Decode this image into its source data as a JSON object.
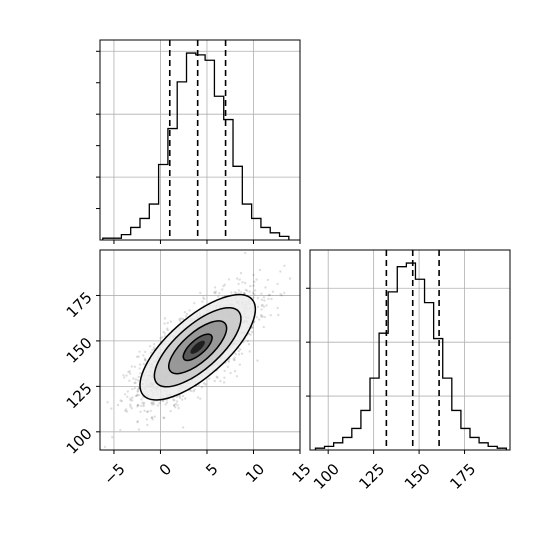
{
  "chart_data": [
    {
      "id": "hist-x",
      "type": "histogram",
      "title": "",
      "xlabel": "",
      "ylabel": "",
      "grid": true,
      "xlim": [
        -6.5,
        15
      ],
      "quantiles": [
        1.0,
        4.0,
        7.0
      ],
      "bins_x": [
        -6.2,
        -5.2,
        -4.2,
        -3.2,
        -2.2,
        -1.2,
        -0.2,
        0.8,
        1.8,
        2.8,
        3.8,
        4.8,
        5.8,
        6.8,
        7.8,
        8.8,
        9.8,
        10.8,
        11.8,
        12.8,
        13.8
      ],
      "counts": [
        1,
        1,
        3,
        7,
        12,
        20,
        42,
        62,
        88,
        104,
        103,
        100,
        80,
        67,
        41,
        20,
        12,
        7,
        4,
        2
      ]
    },
    {
      "id": "corner-2d",
      "type": "heatmap",
      "title": "",
      "xlabel": "",
      "ylabel": "",
      "grid": true,
      "xlim": [
        -6.5,
        15
      ],
      "ylim": [
        90,
        200
      ],
      "xticks": [
        "−5",
        "0",
        "5",
        "10",
        "15"
      ],
      "xtick_values": [
        -5,
        0,
        5,
        10,
        15
      ],
      "yticks": [
        "100",
        "125",
        "150",
        "175"
      ],
      "ytick_values": [
        100,
        125,
        150,
        175
      ],
      "center": [
        4,
        146.5
      ],
      "sigma": [
        3.1,
        14.5
      ],
      "correlation": 0.72,
      "contour_levels_sigma": [
        0.5,
        1.0,
        1.5,
        2.0
      ]
    },
    {
      "id": "hist-y",
      "type": "histogram",
      "title": "",
      "xlabel": "",
      "ylabel": "",
      "grid": true,
      "xlim": [
        90,
        200
      ],
      "xticks": [
        "100",
        "125",
        "150",
        "175"
      ],
      "xtick_values": [
        100,
        125,
        150,
        175
      ],
      "quantiles": [
        132,
        146.5,
        161
      ],
      "bins_x": [
        93,
        98,
        103,
        108,
        113,
        118,
        123,
        128,
        133,
        138,
        143,
        148,
        153,
        158,
        163,
        168,
        173,
        178,
        183,
        188,
        193,
        198
      ],
      "counts": [
        1,
        2,
        4,
        7,
        12,
        22,
        40,
        65,
        88,
        102,
        104,
        95,
        82,
        62,
        40,
        22,
        12,
        7,
        4,
        2,
        1
      ]
    }
  ]
}
